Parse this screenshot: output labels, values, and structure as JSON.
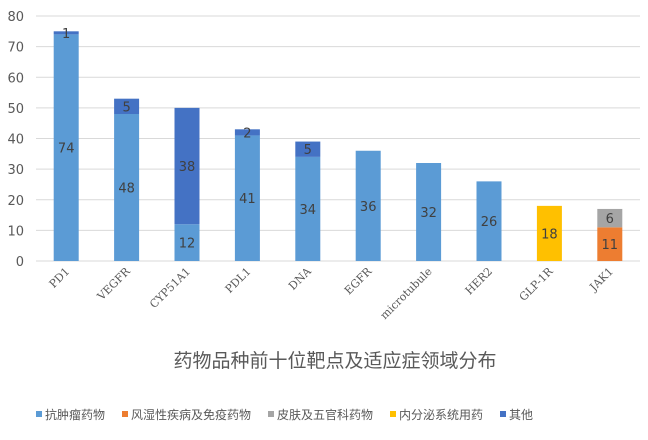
{
  "chart_data": {
    "type": "bar",
    "stacked": true,
    "title": "药物品种前十位靶点及适应症领域分布",
    "xlabel": "",
    "ylabel": "",
    "ylim": [
      0,
      80
    ],
    "yticks": [
      0,
      10,
      20,
      30,
      40,
      50,
      60,
      70,
      80
    ],
    "grid": true,
    "legend_position": "bottom",
    "categories": [
      "PD1",
      "VEGFR",
      "CYP51A1",
      "PDL1",
      "DNA",
      "EGFR",
      "microtubule",
      "HER2",
      "GLP-1R",
      "JAK1"
    ],
    "series": [
      {
        "name": "抗肿瘤药物",
        "color": "#5B9BD5",
        "values": [
          74,
          48,
          12,
          41,
          34,
          36,
          32,
          26,
          null,
          null
        ]
      },
      {
        "name": "风湿性疾病及免疫药物",
        "color": "#ED7D31",
        "values": [
          null,
          null,
          null,
          null,
          null,
          null,
          null,
          null,
          null,
          11
        ]
      },
      {
        "name": "皮肤及五官科药物",
        "color": "#A5A5A5",
        "values": [
          null,
          null,
          null,
          null,
          null,
          null,
          null,
          null,
          null,
          6
        ]
      },
      {
        "name": "内分泌系统用药",
        "color": "#FFC000",
        "values": [
          null,
          null,
          null,
          null,
          null,
          null,
          null,
          null,
          18,
          null
        ]
      },
      {
        "name": "其他",
        "color": "#4472C4",
        "values": [
          1,
          5,
          38,
          2,
          5,
          null,
          null,
          null,
          null,
          null
        ]
      }
    ]
  }
}
